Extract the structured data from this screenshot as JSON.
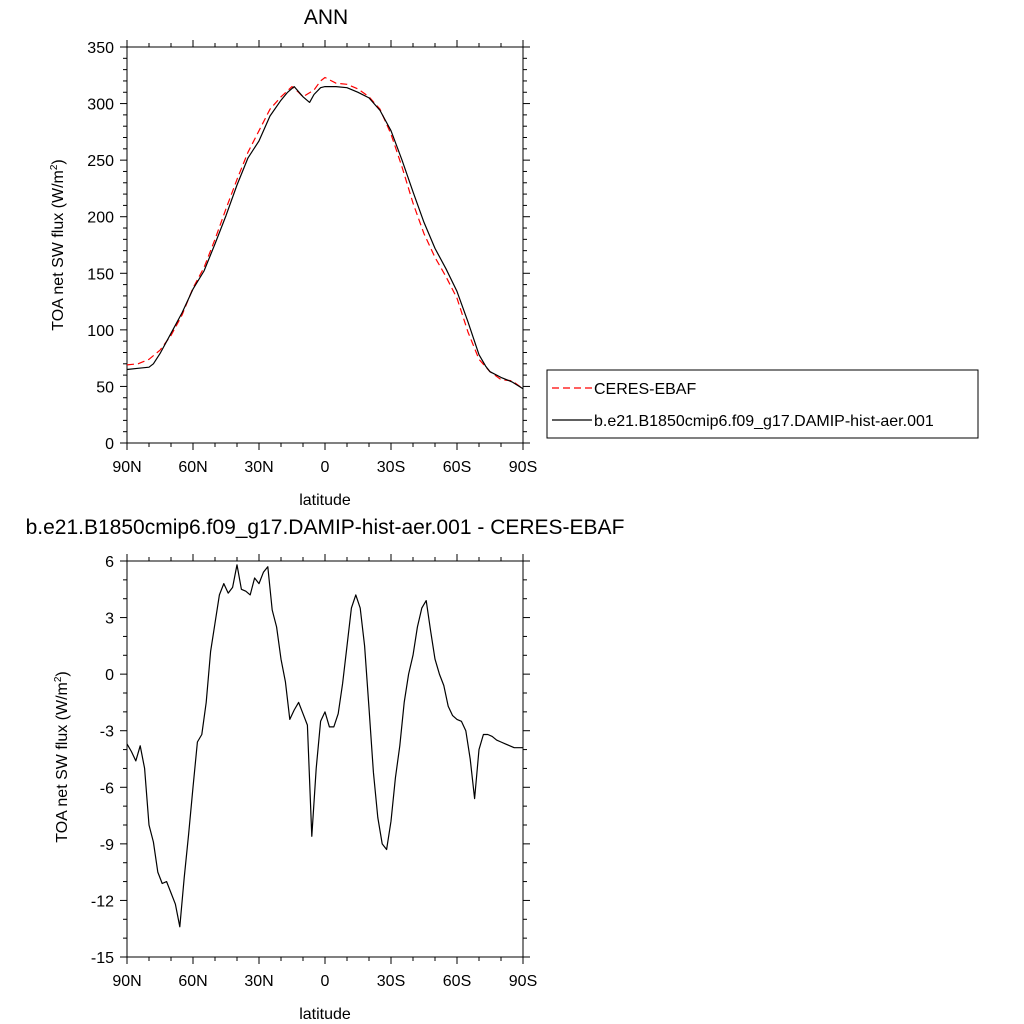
{
  "chart_data": [
    {
      "type": "line",
      "title": "ANN",
      "xlabel": "latitude",
      "ylabel": "TOA net SW flux (W/m",
      "ylabel_sup": "2",
      "ylabel_close": ")",
      "x_ticks": [
        {
          "value": 90,
          "label": "90N"
        },
        {
          "value": 60,
          "label": "60N"
        },
        {
          "value": 30,
          "label": "30N"
        },
        {
          "value": 0,
          "label": "0"
        },
        {
          "value": -30,
          "label": "30S"
        },
        {
          "value": -60,
          "label": "60S"
        },
        {
          "value": -90,
          "label": "90S"
        }
      ],
      "xlim": [
        90,
        -90
      ],
      "ylim": [
        0,
        350
      ],
      "y_ticks": [
        0,
        50,
        100,
        150,
        200,
        250,
        300,
        350
      ],
      "legend_position": "right",
      "series": [
        {
          "name": "CERES-EBAF",
          "color": "#ff0000",
          "dash": "dashed",
          "x": [
            90,
            85,
            80,
            75,
            70,
            65,
            60,
            55,
            50,
            45,
            40,
            35,
            30,
            25,
            20,
            15,
            12,
            10,
            5,
            2,
            0,
            -5,
            -10,
            -15,
            -20,
            -25,
            -30,
            -35,
            -40,
            -45,
            -50,
            -55,
            -60,
            -65,
            -70,
            -75,
            -80,
            -85,
            -90
          ],
          "y": [
            69,
            70,
            74,
            82,
            95,
            113,
            137,
            155,
            180,
            207,
            233,
            257,
            276,
            295,
            306,
            315,
            310,
            306,
            312,
            320,
            323,
            318,
            317,
            313,
            306,
            295,
            273,
            244,
            212,
            185,
            164,
            147,
            128,
            98,
            74,
            63,
            56,
            55,
            48
          ]
        },
        {
          "name": "b.e21.B1850cmip6.f09_g17.DAMIP-hist-aer.001",
          "color": "#000000",
          "dash": "solid",
          "x": [
            90,
            85,
            80,
            78,
            75,
            70,
            65,
            60,
            55,
            50,
            45,
            40,
            35,
            30,
            25,
            20,
            17,
            14,
            10,
            7,
            5,
            2,
            0,
            -5,
            -10,
            -15,
            -20,
            -25,
            -30,
            -35,
            -40,
            -45,
            -50,
            -55,
            -60,
            -65,
            -70,
            -73,
            -75,
            -80,
            -85,
            -90
          ],
          "y": [
            65,
            66,
            67,
            70,
            79,
            97,
            115,
            136,
            152,
            176,
            201,
            228,
            252,
            267,
            289,
            303,
            310,
            315,
            306,
            301,
            308,
            314,
            315,
            315,
            314,
            310,
            305,
            294,
            276,
            250,
            222,
            195,
            172,
            154,
            134,
            107,
            78,
            68,
            63,
            58,
            54,
            48
          ]
        }
      ]
    },
    {
      "type": "line",
      "title": "b.e21.B1850cmip6.f09_g17.DAMIP-hist-aer.001 - CERES-EBAF",
      "xlabel": "latitude",
      "ylabel": "TOA net SW flux (W/m",
      "ylabel_sup": "2",
      "ylabel_close": ")",
      "x_ticks": [
        {
          "value": 90,
          "label": "90N"
        },
        {
          "value": 60,
          "label": "60N"
        },
        {
          "value": 30,
          "label": "30N"
        },
        {
          "value": 0,
          "label": "0"
        },
        {
          "value": -30,
          "label": "30S"
        },
        {
          "value": -60,
          "label": "60S"
        },
        {
          "value": -90,
          "label": "90S"
        }
      ],
      "xlim": [
        90,
        -90
      ],
      "ylim": [
        -15,
        6
      ],
      "y_ticks": [
        -15,
        -12,
        -9,
        -6,
        -3,
        0,
        3,
        6
      ],
      "series": [
        {
          "color": "#000000",
          "x": [
            90,
            88,
            86,
            84,
            82,
            80,
            78,
            76,
            74,
            72,
            70,
            68,
            66,
            64,
            62,
            60,
            58,
            56,
            54,
            52,
            50,
            48,
            46,
            44,
            42,
            40,
            38,
            36,
            34,
            32,
            30,
            28,
            26,
            24,
            22,
            20,
            18,
            16,
            14,
            12,
            10,
            8,
            6,
            4,
            2,
            0,
            -2,
            -4,
            -6,
            -8,
            -10,
            -12,
            -14,
            -16,
            -18,
            -20,
            -22,
            -24,
            -26,
            -28,
            -30,
            -32,
            -34,
            -36,
            -38,
            -40,
            -42,
            -44,
            -46,
            -48,
            -50,
            -52,
            -54,
            -56,
            -58,
            -60,
            -62,
            -64,
            -66,
            -68,
            -70,
            -72,
            -74,
            -76,
            -78,
            -80,
            -82,
            -84,
            -86,
            -88,
            -90
          ],
          "y": [
            -3.7,
            -4.1,
            -4.6,
            -3.8,
            -5.0,
            -8.0,
            -8.9,
            -10.5,
            -11.1,
            -11.0,
            -11.6,
            -12.2,
            -13.4,
            -10.8,
            -8.5,
            -6.0,
            -3.6,
            -3.2,
            -1.5,
            1.2,
            2.7,
            4.2,
            4.8,
            4.3,
            4.6,
            5.8,
            4.5,
            4.4,
            4.2,
            5.1,
            4.8,
            5.4,
            5.7,
            3.4,
            2.5,
            0.8,
            -0.4,
            -2.4,
            -1.9,
            -1.5,
            -2.1,
            -2.7,
            -8.6,
            -5.0,
            -2.5,
            -2.0,
            -2.8,
            -2.8,
            -2.1,
            -0.5,
            1.5,
            3.5,
            4.2,
            3.5,
            1.5,
            -1.8,
            -5.2,
            -7.6,
            -9.0,
            -9.3,
            -7.8,
            -5.5,
            -3.8,
            -1.5,
            0.0,
            1.0,
            2.5,
            3.5,
            3.9,
            2.3,
            0.8,
            0.0,
            -0.6,
            -1.7,
            -2.2,
            -2.4,
            -2.5,
            -3.0,
            -4.5,
            -6.6,
            -4.0,
            -3.2,
            -3.2,
            -3.3,
            -3.5,
            -3.6,
            -3.7,
            -3.8,
            -3.9,
            -3.9,
            -3.9
          ]
        }
      ]
    }
  ]
}
